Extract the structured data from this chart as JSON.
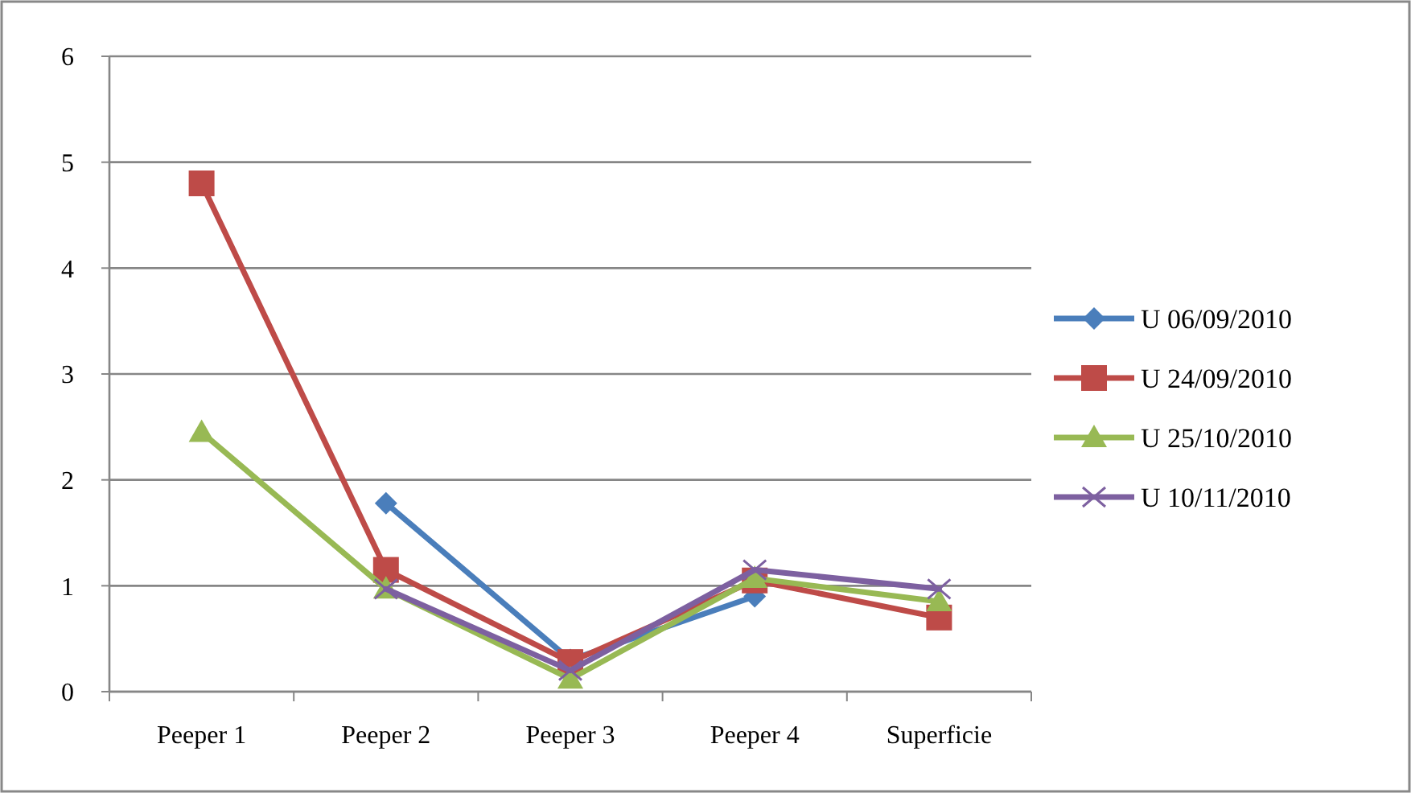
{
  "chart_data": {
    "type": "line",
    "categories": [
      "Peeper 1",
      "Peeper 2",
      "Peeper 3",
      "Peeper 4",
      "Superficie"
    ],
    "series": [
      {
        "name": "U 06/09/2010",
        "color": "#4a7ebb",
        "marker": "diamond",
        "values": [
          null,
          1.78,
          0.3,
          0.9,
          null
        ]
      },
      {
        "name": "U 24/09/2010",
        "color": "#be4b48",
        "marker": "square",
        "values": [
          4.8,
          1.15,
          0.28,
          1.05,
          0.7
        ]
      },
      {
        "name": "U 25/10/2010",
        "color": "#98b954",
        "marker": "triangle",
        "values": [
          2.45,
          0.97,
          0.12,
          1.07,
          0.85
        ]
      },
      {
        "name": "U 10/11/2010",
        "color": "#7d60a0",
        "marker": "cross",
        "values": [
          null,
          0.97,
          0.2,
          1.15,
          0.97
        ]
      }
    ],
    "ylim": [
      0,
      6
    ],
    "yticks": [
      0,
      1,
      2,
      3,
      4,
      5,
      6
    ],
    "grid": "y",
    "legend": "right"
  }
}
